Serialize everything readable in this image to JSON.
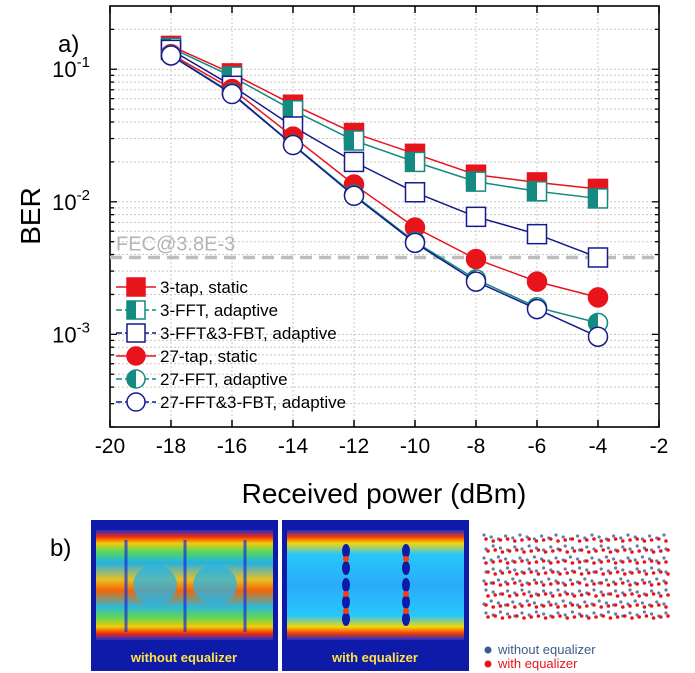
{
  "panel_a": {
    "label": "a)"
  },
  "panel_b": {
    "label": "b)",
    "eye_left_caption": "without equalizer",
    "eye_right_caption": "with equalizer",
    "constellation_legend": [
      {
        "label": "without equalizer",
        "color": "#3b5b8c"
      },
      {
        "label": "with equalizer",
        "color": "#e8141c"
      }
    ]
  },
  "chart_data": {
    "type": "line",
    "xlabel": "Received power (dBm)",
    "ylabel": "BER",
    "xlim": [
      -20,
      -2
    ],
    "ylim": [
      0.0002,
      0.3
    ],
    "yscale": "log",
    "x_ticks": [
      -20,
      -18,
      -16,
      -14,
      -12,
      -10,
      -8,
      -6,
      -4,
      -2
    ],
    "x_tick_labels": [
      "-20",
      "-18",
      "-16",
      "-14",
      "-12",
      "-10",
      "-8",
      "-6",
      "-4",
      "-2"
    ],
    "y_ticks": [
      {
        "value": 0.1,
        "base": "10",
        "exp": "-1"
      },
      {
        "value": 0.01,
        "base": "10",
        "exp": "-2"
      },
      {
        "value": 0.001,
        "base": "10",
        "exp": "-3"
      }
    ],
    "grid": true,
    "threshold": {
      "value": 0.0038,
      "label": "FEC@3.8E-3",
      "color": "#bdbdbd"
    },
    "legend_position": "lower-left",
    "x": [
      -18,
      -16,
      -14,
      -12,
      -10,
      -8,
      -6,
      -4
    ],
    "series": [
      {
        "name": "3-tap, static",
        "marker": "square-filled",
        "color": "#e8141c",
        "values": [
          0.15,
          0.093,
          0.054,
          0.033,
          0.023,
          0.016,
          0.014,
          0.0125
        ]
      },
      {
        "name": "3-FFT, adaptive",
        "marker": "square-half",
        "color": "#138a82",
        "values": [
          0.145,
          0.088,
          0.049,
          0.029,
          0.02,
          0.0142,
          0.012,
          0.0106
        ]
      },
      {
        "name": "3-FFT&3-FBT, adaptive",
        "marker": "square-open",
        "color": "#151a8c",
        "values": [
          0.14,
          0.075,
          0.037,
          0.02,
          0.0118,
          0.0077,
          0.0057,
          0.0038
        ]
      },
      {
        "name": "27-tap, static",
        "marker": "circle-filled",
        "color": "#e8141c",
        "values": [
          0.13,
          0.071,
          0.031,
          0.0135,
          0.0064,
          0.0037,
          0.0025,
          0.0019
        ]
      },
      {
        "name": "27-FFT, adaptive",
        "marker": "circle-half",
        "color": "#138a82",
        "values": [
          0.128,
          0.066,
          0.027,
          0.0113,
          0.005,
          0.0026,
          0.0016,
          0.00122
        ]
      },
      {
        "name": "27-FFT&3-FBT, adaptive",
        "marker": "circle-open",
        "color": "#151a8c",
        "values": [
          0.127,
          0.065,
          0.0268,
          0.0111,
          0.0049,
          0.0025,
          0.00155,
          0.00096
        ]
      }
    ]
  }
}
